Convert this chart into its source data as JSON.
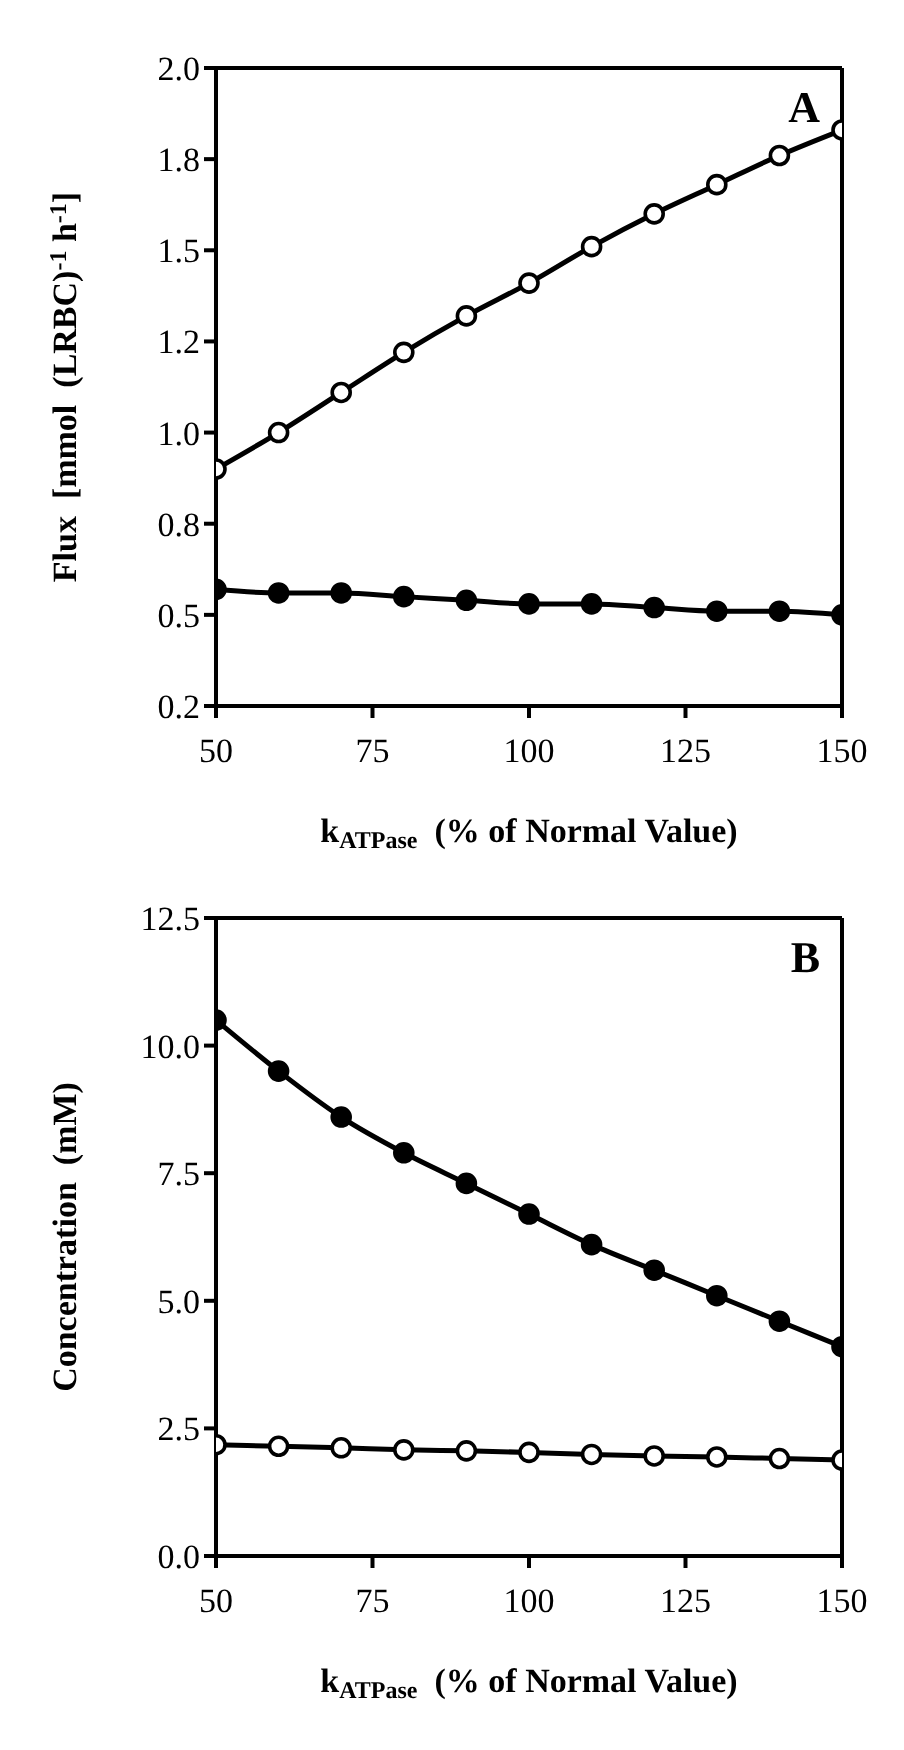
{
  "chart_data": [
    {
      "type": "line",
      "xlabel": "k$_{ATPase}$  (% of Normal Value)",
      "ylabel": "Flux  [mmol  (LRBC)$^{-1}$ h$^{-1}$]",
      "annotations": [
        "A"
      ],
      "marker": "circle",
      "line_style": "solid",
      "grid": false,
      "x": [
        50,
        60,
        70,
        80,
        90,
        100,
        110,
        120,
        130,
        140,
        150
      ],
      "series": [
        {
          "color": "#000000",
          "values": [
            0.9,
            1.0,
            1.11,
            1.22,
            1.32,
            1.41,
            1.51,
            1.6,
            1.68,
            1.76,
            1.83
          ]
        },
        {
          "color": "#000000",
          "values": [
            0.57,
            0.56,
            0.56,
            0.55,
            0.54,
            0.53,
            0.53,
            0.52,
            0.51,
            0.51,
            0.5
          ]
        }
      ],
      "xlim": [
        50,
        150
      ],
      "xticks": [
        50,
        75,
        100,
        125,
        150
      ],
      "ylim": [
        0.25,
        2.0
      ],
      "yticks": [
        {
          "value": 0.25,
          "label": "0.2"
        },
        0.5,
        {
          "value": 0.75,
          "label": "0.8"
        },
        {
          "value": 1.0,
          "label": "1.0"
        },
        {
          "value": 1.25,
          "label": "1.2"
        },
        1.5,
        {
          "value": 1.75,
          "label": "1.8"
        },
        {
          "value": 2.0,
          "label": "2.0"
        }
      ]
    },
    {
      "type": "line",
      "xlabel": "k$_{ATPase}$  (% of Normal Value)",
      "ylabel": "Concentration  (mM)",
      "annotations": [
        "B"
      ],
      "marker": "circle",
      "line_style": "solid",
      "grid": false,
      "x": [
        50,
        60,
        70,
        80,
        90,
        100,
        110,
        120,
        130,
        140,
        150
      ],
      "series": [
        {
          "color": "#000000",
          "values": [
            2.18,
            2.15,
            2.12,
            2.08,
            2.06,
            2.03,
            1.99,
            1.96,
            1.94,
            1.91,
            1.88
          ]
        },
        {
          "color": "#000000",
          "values": [
            10.5,
            9.5,
            8.6,
            7.9,
            7.3,
            6.7,
            6.1,
            5.6,
            5.1,
            4.6,
            4.1
          ]
        }
      ],
      "xlim": [
        50,
        150
      ],
      "xticks": [
        50,
        75,
        100,
        125,
        150
      ],
      "ylim": [
        0,
        12.5
      ],
      "yticks": [
        {
          "value": 0,
          "label": "0.0"
        },
        2.5,
        {
          "value": 5,
          "label": "5.0"
        },
        7.5,
        {
          "value": 10,
          "label": "10.0"
        },
        12.5
      ]
    }
  ]
}
